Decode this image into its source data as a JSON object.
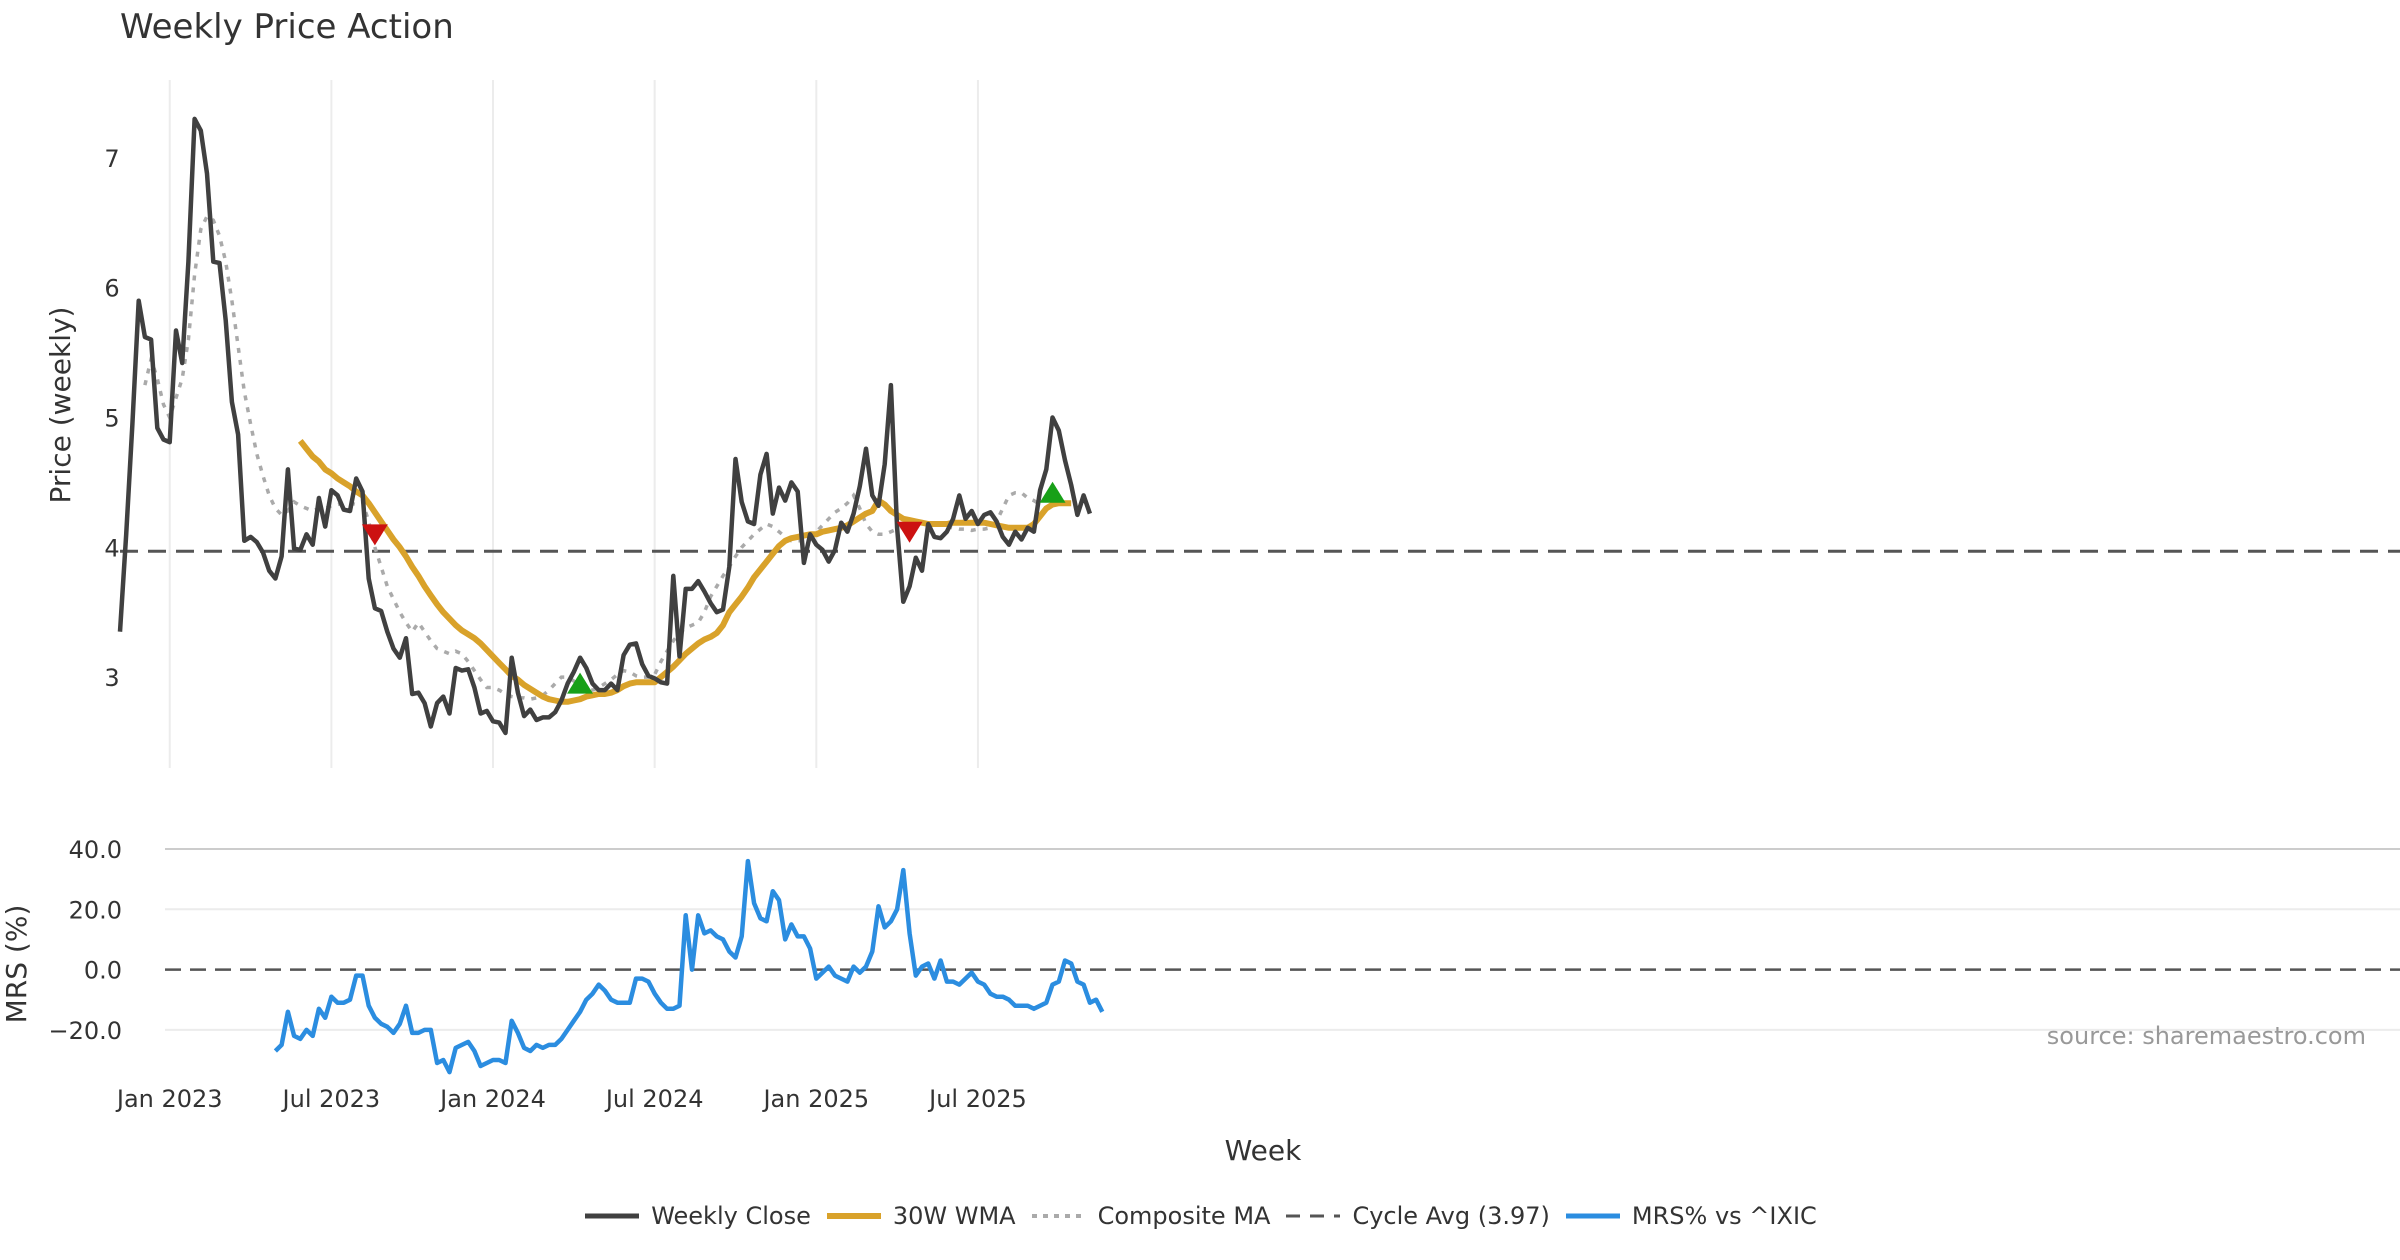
{
  "chart_data": [
    {
      "type": "line",
      "title": "Weekly Price Action",
      "ylabel": "Price (weekly)",
      "xlabel": "Week",
      "ylim": [
        2.3,
        7.6
      ],
      "yticks": [
        3,
        4,
        5,
        6,
        7
      ],
      "xticks": [
        "Jan 2023",
        "Jul 2023",
        "Jan 2024",
        "Jul 2024",
        "Jan 2025",
        "Jul 2025"
      ],
      "xtick_weeks": [
        8,
        34,
        60,
        86,
        112,
        138
      ],
      "series": [
        {
          "name": "Weekly Close",
          "color": "#404040",
          "start_week": 0,
          "values": [
            3.35,
            4.1,
            4.95,
            5.9,
            5.62,
            5.6,
            4.92,
            4.83,
            4.81,
            5.67,
            5.42,
            6.2,
            7.3,
            7.21,
            6.88,
            6.2,
            6.19,
            5.75,
            5.12,
            4.87,
            4.05,
            4.08,
            4.04,
            3.96,
            3.82,
            3.76,
            3.93,
            4.6,
            3.99,
            3.98,
            4.1,
            4.02,
            4.38,
            4.16,
            4.44,
            4.4,
            4.29,
            4.28,
            4.53,
            4.43,
            3.76,
            3.53,
            3.51,
            3.35,
            3.22,
            3.15,
            3.3,
            2.87,
            2.88,
            2.8,
            2.62,
            2.8,
            2.85,
            2.72,
            3.07,
            3.05,
            3.06,
            2.92,
            2.72,
            2.74,
            2.66,
            2.65,
            2.57,
            3.15,
            2.88,
            2.7,
            2.75,
            2.67,
            2.69,
            2.69,
            2.73,
            2.82,
            2.95,
            3.04,
            3.15,
            3.07,
            2.95,
            2.9,
            2.9,
            2.95,
            2.9,
            3.17,
            3.25,
            3.26,
            3.1,
            3.01,
            2.99,
            2.96,
            2.95,
            3.78,
            3.16,
            3.68,
            3.68,
            3.74,
            3.66,
            3.57,
            3.5,
            3.52,
            3.85,
            4.68,
            4.35,
            4.2,
            4.18,
            4.56,
            4.72,
            4.26,
            4.46,
            4.36,
            4.5,
            4.43,
            3.88,
            4.1,
            4.02,
            3.98,
            3.89,
            3.98,
            4.19,
            4.12,
            4.26,
            4.47,
            4.76,
            4.4,
            4.32,
            4.64,
            5.25,
            4.15,
            3.58,
            3.7,
            3.92,
            3.82,
            4.18,
            4.08,
            4.07,
            4.12,
            4.22,
            4.4,
            4.22,
            4.28,
            4.18,
            4.25,
            4.27,
            4.2,
            4.08,
            4.02,
            4.12,
            4.06,
            4.15,
            4.12,
            4.44,
            4.6,
            5.0,
            4.9,
            4.67,
            4.48,
            4.25,
            4.4,
            4.26
          ]
        },
        {
          "name": "30W WMA",
          "color": "#d9a22a",
          "start_week": 29,
          "values": [
            4.82,
            4.76,
            4.7,
            4.66,
            4.6,
            4.57,
            4.53,
            4.5,
            4.47,
            4.43,
            4.4,
            4.34,
            4.27,
            4.2,
            4.13,
            4.06,
            4.0,
            3.93,
            3.85,
            3.78,
            3.7,
            3.63,
            3.56,
            3.5,
            3.45,
            3.4,
            3.36,
            3.33,
            3.3,
            3.26,
            3.21,
            3.16,
            3.11,
            3.06,
            3.01,
            2.98,
            2.94,
            2.91,
            2.88,
            2.85,
            2.83,
            2.82,
            2.81,
            2.81,
            2.82,
            2.83,
            2.85,
            2.86,
            2.87,
            2.87,
            2.88,
            2.9,
            2.93,
            2.95,
            2.96,
            2.96,
            2.96,
            2.96,
            3.0,
            3.04,
            3.08,
            3.13,
            3.18,
            3.22,
            3.26,
            3.29,
            3.31,
            3.34,
            3.4,
            3.5,
            3.56,
            3.62,
            3.69,
            3.77,
            3.83,
            3.89,
            3.95,
            4.01,
            4.05,
            4.07,
            4.08,
            4.09,
            4.1,
            4.1,
            4.12,
            4.13,
            4.14,
            4.15,
            4.17,
            4.2,
            4.23,
            4.26,
            4.28,
            4.36,
            4.33,
            4.28,
            4.25,
            4.22,
            4.21,
            4.2,
            4.19,
            4.18,
            4.18,
            4.18,
            4.18,
            4.19,
            4.19,
            4.19,
            4.19,
            4.19,
            4.19,
            4.18,
            4.17,
            4.16,
            4.15,
            4.15,
            4.15,
            4.15,
            4.18,
            4.24,
            4.3,
            4.33,
            4.34,
            4.34,
            4.34
          ]
        },
        {
          "name": "Composite MA",
          "color": "#aaaaaa",
          "start_week": 4,
          "values": [
            5.25,
            5.45,
            5.3,
            5.1,
            5.0,
            5.15,
            5.3,
            5.6,
            6.1,
            6.45,
            6.55,
            6.52,
            6.4,
            6.2,
            5.9,
            5.55,
            5.2,
            4.95,
            4.72,
            4.55,
            4.4,
            4.3,
            4.25,
            4.28,
            4.35,
            4.32,
            4.3,
            4.28,
            4.3,
            4.3,
            4.32,
            4.33,
            4.34,
            4.34,
            4.33,
            4.35,
            4.2,
            4.0,
            3.85,
            3.7,
            3.6,
            3.5,
            3.42,
            3.35,
            3.42,
            3.35,
            3.28,
            3.22,
            3.2,
            3.18,
            3.2,
            3.18,
            3.12,
            3.05,
            2.98,
            2.92,
            2.92,
            2.9,
            2.87,
            2.85,
            2.84,
            2.84,
            2.83,
            2.84,
            2.86,
            2.9,
            2.95,
            3.0,
            3.0,
            2.97,
            2.93,
            2.9,
            2.9,
            2.92,
            2.95,
            2.98,
            3.02,
            3.05,
            3.04,
            3.01,
            3.0,
            3.0,
            3.02,
            3.12,
            3.2,
            3.28,
            3.34,
            3.38,
            3.4,
            3.42,
            3.5,
            3.62,
            3.7,
            3.78,
            3.85,
            3.93,
            4.0,
            4.05,
            4.1,
            4.14,
            4.18,
            4.16,
            4.12,
            4.08,
            4.05,
            4.05,
            4.05,
            4.08,
            4.12,
            4.17,
            4.22,
            4.27,
            4.3,
            4.34,
            4.4,
            4.3,
            4.18,
            4.12,
            4.1,
            4.1,
            4.12,
            4.14,
            4.16,
            4.18,
            4.18,
            4.18,
            4.18,
            4.18,
            4.17,
            4.16,
            4.15,
            4.14,
            4.14,
            4.13,
            4.14,
            4.14,
            4.15,
            4.2,
            4.3,
            4.4,
            4.42,
            4.42,
            4.38,
            4.36,
            4.33
          ]
        },
        {
          "name": "Cycle Avg (3.97)",
          "color": "#555555",
          "value": 3.97
        }
      ],
      "markers": [
        {
          "type": "sell",
          "color": "#cc1111",
          "week": 41,
          "value": 4.1
        },
        {
          "type": "buy",
          "color": "#18a018",
          "week": 74,
          "value": 2.95
        },
        {
          "type": "sell",
          "color": "#cc1111",
          "week": 127,
          "value": 4.12
        },
        {
          "type": "buy",
          "color": "#18a018",
          "week": 150,
          "value": 4.42
        }
      ]
    },
    {
      "type": "line",
      "ylabel": "MRS (%)",
      "ylim": [
        -30,
        40
      ],
      "yticks": [
        "40.0",
        "20.0",
        "0.0",
        "−20.0"
      ],
      "ytick_values": [
        40,
        20,
        0,
        -20
      ],
      "series": [
        {
          "name": "MRS% vs ^IXIC",
          "color": "#2b8de0",
          "start_week": 25,
          "values": [
            -27,
            -25,
            -14,
            -22,
            -23,
            -20,
            -22,
            -13,
            -16,
            -9,
            -11,
            -11,
            -10,
            -2,
            -2,
            -12,
            -16,
            -18,
            -19,
            -21,
            -18,
            -12,
            -21,
            -21,
            -20,
            -20,
            -31,
            -30,
            -34,
            -26,
            -25,
            -24,
            -27,
            -32,
            -31,
            -30,
            -30,
            -31,
            -17,
            -21,
            -26,
            -27,
            -25,
            -26,
            -25,
            -25,
            -23,
            -20,
            -17,
            -14,
            -10,
            -8,
            -5,
            -7,
            -10,
            -11,
            -11,
            -11,
            -3,
            -3,
            -4,
            -8,
            -11,
            -13,
            -13,
            -12,
            18,
            0,
            18,
            12,
            13,
            11,
            10,
            6,
            4,
            11,
            36,
            22,
            17,
            16,
            26,
            23,
            10,
            15,
            11,
            11,
            7,
            -3,
            -1,
            1,
            -2,
            -3,
            -4,
            1,
            -1,
            1,
            6,
            21,
            14,
            16,
            20,
            33,
            12,
            -2,
            1,
            2,
            -3,
            3,
            -4,
            -4,
            -5,
            -3,
            -1,
            -4,
            -5,
            -8,
            -9,
            -9,
            -10,
            -12,
            -12,
            -12,
            -13,
            -12,
            -11,
            -5,
            -4,
            3,
            2,
            -4,
            -5,
            -11,
            -10,
            -14
          ]
        },
        {
          "name": "zero",
          "value": 0
        }
      ],
      "annotation": "source: sharemaestro.com"
    }
  ]
}
